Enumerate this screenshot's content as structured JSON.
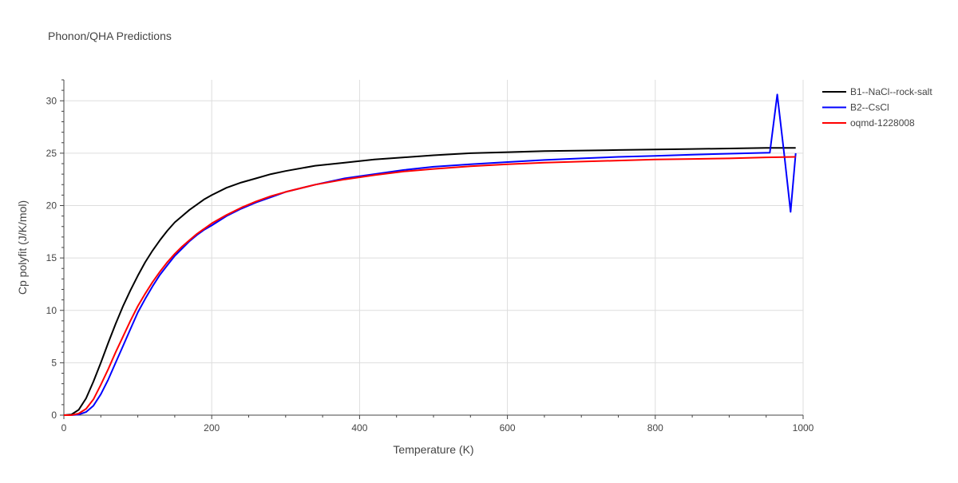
{
  "chart_data": {
    "type": "line",
    "title": "Phonon/QHA Predictions",
    "xlabel": "Temperature (K)",
    "ylabel": "Cp polyfit (J/K/mol)",
    "xlim": [
      0,
      1000
    ],
    "ylim": [
      0,
      32
    ],
    "xticks": [
      0,
      200,
      400,
      600,
      800,
      1000
    ],
    "xtick_labels": [
      "0",
      "200",
      "400",
      "600",
      "800",
      "1000"
    ],
    "yticks": [
      0,
      5,
      10,
      15,
      20,
      25,
      30
    ],
    "ytick_labels": [
      "0",
      "5",
      "10",
      "15",
      "20",
      "25",
      "30"
    ],
    "grid": true,
    "legend_position": "top-right, outside plot",
    "series": [
      {
        "name": "B1--NaCl--rock-salt",
        "color": "#000000",
        "x": [
          0,
          10,
          20,
          30,
          40,
          50,
          60,
          70,
          80,
          90,
          100,
          110,
          120,
          130,
          140,
          150,
          160,
          170,
          180,
          190,
          200,
          220,
          240,
          260,
          280,
          300,
          340,
          380,
          420,
          460,
          500,
          550,
          600,
          650,
          700,
          750,
          800,
          850,
          900,
          950,
          990
        ],
        "y": [
          0,
          0.05,
          0.5,
          1.6,
          3.2,
          5.0,
          6.9,
          8.7,
          10.4,
          11.9,
          13.3,
          14.6,
          15.7,
          16.7,
          17.6,
          18.4,
          19.0,
          19.6,
          20.1,
          20.6,
          21.0,
          21.7,
          22.2,
          22.6,
          23.0,
          23.3,
          23.8,
          24.1,
          24.4,
          24.6,
          24.8,
          25.0,
          25.1,
          25.2,
          25.25,
          25.3,
          25.35,
          25.4,
          25.45,
          25.5,
          25.5
        ]
      },
      {
        "name": "B2--CsCl",
        "color": "#0000ff",
        "x": [
          0,
          10,
          20,
          30,
          40,
          50,
          60,
          70,
          80,
          90,
          100,
          110,
          120,
          130,
          140,
          150,
          160,
          170,
          180,
          190,
          200,
          220,
          240,
          260,
          280,
          300,
          340,
          380,
          420,
          460,
          500,
          550,
          600,
          650,
          700,
          750,
          800,
          850,
          900,
          955,
          965,
          975,
          983,
          990
        ],
        "y": [
          0,
          0.0,
          0.05,
          0.3,
          0.9,
          2.0,
          3.4,
          5.0,
          6.6,
          8.2,
          9.8,
          11.1,
          12.3,
          13.4,
          14.3,
          15.2,
          15.9,
          16.6,
          17.2,
          17.7,
          18.1,
          19.0,
          19.7,
          20.3,
          20.8,
          21.3,
          22.0,
          22.6,
          23.0,
          23.4,
          23.7,
          23.95,
          24.15,
          24.35,
          24.5,
          24.65,
          24.75,
          24.85,
          24.95,
          25.05,
          30.6,
          24.5,
          19.4,
          25.0
        ]
      },
      {
        "name": "oqmd-1228008",
        "color": "#ff0000",
        "x": [
          0,
          10,
          20,
          30,
          40,
          50,
          60,
          70,
          80,
          90,
          100,
          110,
          120,
          130,
          140,
          150,
          160,
          170,
          180,
          190,
          200,
          220,
          240,
          260,
          280,
          300,
          340,
          380,
          420,
          460,
          500,
          550,
          600,
          650,
          700,
          750,
          800,
          850,
          900,
          950,
          990
        ],
        "y": [
          0,
          0.0,
          0.15,
          0.6,
          1.5,
          2.9,
          4.4,
          6.0,
          7.5,
          9.0,
          10.4,
          11.6,
          12.7,
          13.7,
          14.6,
          15.4,
          16.1,
          16.7,
          17.3,
          17.8,
          18.3,
          19.1,
          19.8,
          20.4,
          20.9,
          21.3,
          22.0,
          22.5,
          22.9,
          23.25,
          23.5,
          23.75,
          23.95,
          24.1,
          24.2,
          24.3,
          24.4,
          24.45,
          24.5,
          24.6,
          24.65
        ]
      }
    ]
  }
}
